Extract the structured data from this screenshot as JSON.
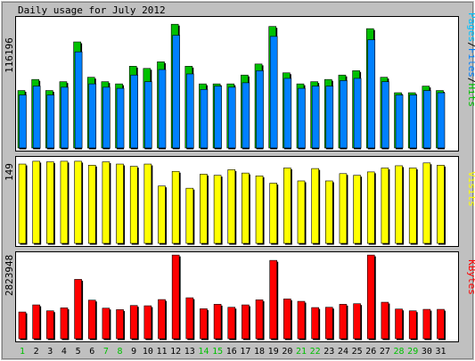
{
  "chart_data": {
    "title": "Daily usage for July 2012",
    "type": "bar",
    "categories": [
      "1",
      "2",
      "3",
      "4",
      "5",
      "6",
      "7",
      "8",
      "9",
      "10",
      "11",
      "12",
      "13",
      "14",
      "15",
      "16",
      "17",
      "18",
      "19",
      "20",
      "21",
      "22",
      "23",
      "24",
      "25",
      "26",
      "27",
      "28",
      "29",
      "30",
      "31"
    ],
    "weekend_days": [
      "1",
      "7",
      "8",
      "14",
      "15",
      "21",
      "22",
      "28",
      "29"
    ],
    "colors": {
      "hits": "#00c000",
      "files": "#0080ff",
      "pages": "#00c0ff",
      "visits": "#ffff00",
      "kbytes": "#ff0000",
      "weekday_label": "#000000",
      "weekend_label": "#00c000"
    },
    "panels": [
      {
        "id": "hits_files",
        "ymax_label": "116196",
        "ymax": 116196,
        "side_label_parts": [
          {
            "text": "Pages",
            "color": "#00c0ff"
          },
          {
            "text": "/",
            "color": "#000000"
          },
          {
            "text": "Files",
            "color": "#0080ff"
          },
          {
            "text": "/",
            "color": "#000000"
          },
          {
            "text": "Hits",
            "color": "#00c000"
          }
        ],
        "series": [
          {
            "key": "hits",
            "values": [
              52000,
              62000,
              52000,
              60000,
              96000,
              64000,
              60000,
              58000,
              74000,
              72000,
              78000,
              112000,
              74000,
              58000,
              58000,
              58000,
              66000,
              76000,
              110000,
              68000,
              58000,
              60000,
              62000,
              66000,
              70000,
              108000,
              64000,
              50000,
              50000,
              56000,
              52000
            ]
          },
          {
            "key": "files",
            "values": [
              48000,
              56000,
              48000,
              55000,
              87000,
              58000,
              55000,
              54000,
              66000,
              60000,
              71000,
              102000,
              67000,
              53000,
              56000,
              55000,
              59000,
              70000,
              101000,
              63000,
              54000,
              56000,
              56000,
              61000,
              63000,
              98000,
              60000,
              48000,
              48000,
              52000,
              50000
            ]
          }
        ]
      },
      {
        "id": "visits",
        "ymax_label": "149",
        "ymax": 149,
        "side_label_parts": [
          {
            "text": "Visits",
            "color": "#ffff00"
          }
        ],
        "series": [
          {
            "key": "visits",
            "values": [
              141,
              146,
              145,
              146,
              146,
              139,
              145,
              141,
              137,
              141,
              102,
              128,
              98,
              123,
              121,
              131,
              125,
              120,
              107,
              134,
              111,
              133,
              111,
              124,
              121,
              127,
              134,
              138,
              134,
              143,
              139
            ]
          }
        ]
      },
      {
        "id": "kbytes",
        "ymax_label": "2823948",
        "ymax": 2823948,
        "side_label_parts": [
          {
            "text": "KBytes",
            "color": "#ff0000"
          }
        ],
        "series": [
          {
            "key": "kbytes",
            "values": [
              900000,
              1140000,
              940000,
              1040000,
              2000000,
              1300000,
              1030000,
              980000,
              1120000,
              1110000,
              1320000,
              2820000,
              1380000,
              1010000,
              1160000,
              1060000,
              1140000,
              1310000,
              2640000,
              1340000,
              1260000,
              1050000,
              1060000,
              1160000,
              1180000,
              2820000,
              1230000,
              1000000,
              940000,
              990000,
              990000
            ]
          }
        ]
      }
    ]
  }
}
